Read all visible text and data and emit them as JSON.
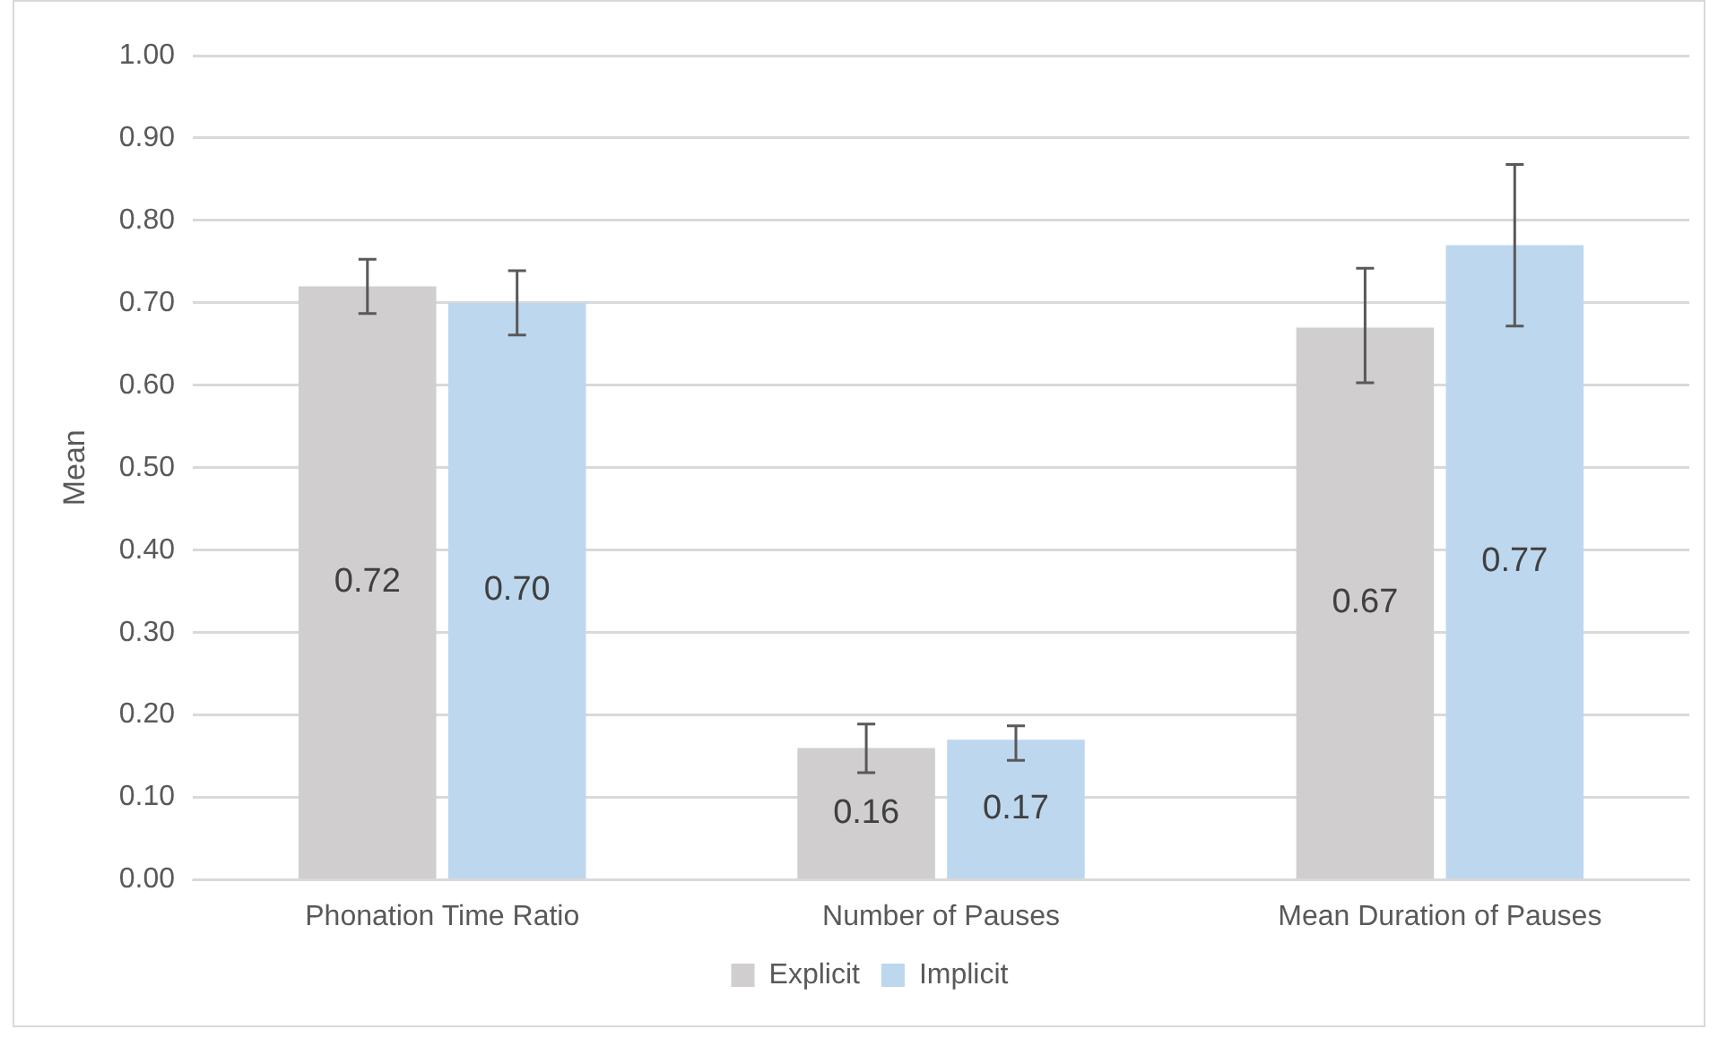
{
  "chart_data": {
    "type": "bar",
    "ylabel": "Mean",
    "categories": [
      "Phonation Time Ratio",
      "Number of Pauses",
      "Mean Duration of Pauses"
    ],
    "series": [
      {
        "name": "Explicit",
        "color": "#d0cece",
        "values": [
          0.72,
          0.16,
          0.67
        ],
        "errors": [
          [
            0.687,
            0.753
          ],
          [
            0.13,
            0.189
          ],
          [
            0.603,
            0.742
          ]
        ]
      },
      {
        "name": "Implicit",
        "color": "#bdd7ee",
        "values": [
          0.7,
          0.17,
          0.77
        ],
        "errors": [
          [
            0.661,
            0.739
          ],
          [
            0.145,
            0.187
          ],
          [
            0.672,
            0.868
          ]
        ]
      }
    ],
    "value_labels": [
      [
        "0.72",
        "0.16",
        "0.67"
      ],
      [
        "0.70",
        "0.17",
        "0.77"
      ]
    ],
    "ylim": [
      0,
      1
    ],
    "yticks": [
      {
        "value": 0,
        "label": "0.00"
      },
      {
        "value": 0.1,
        "label": "0.10"
      },
      {
        "value": 0.2,
        "label": "0.20"
      },
      {
        "value": 0.3,
        "label": "0.30"
      },
      {
        "value": 0.4,
        "label": "0.40"
      },
      {
        "value": 0.5,
        "label": "0.50"
      },
      {
        "value": 0.6,
        "label": "0.60"
      },
      {
        "value": 0.7,
        "label": "0.70"
      },
      {
        "value": 0.8,
        "label": "0.80"
      },
      {
        "value": 0.9,
        "label": "0.90"
      },
      {
        "value": 1,
        "label": "1.00"
      }
    ],
    "grid": "y",
    "legend": "bottom"
  }
}
